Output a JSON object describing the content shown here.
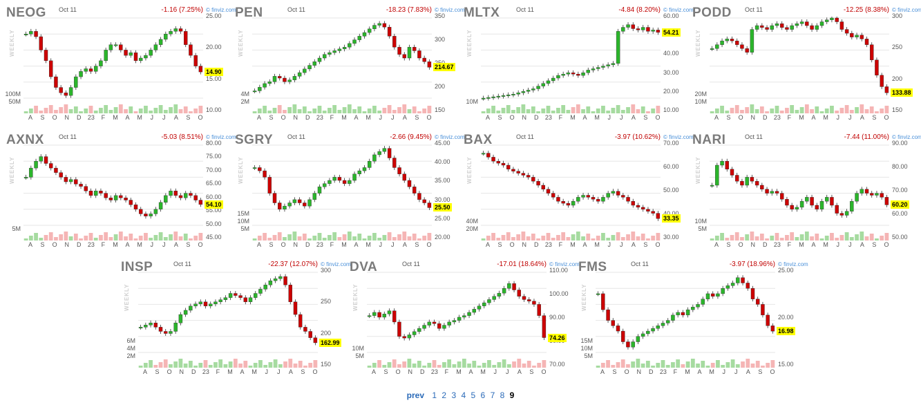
{
  "months": [
    "A",
    "S",
    "O",
    "N",
    "D",
    "23",
    "F",
    "M",
    "A",
    "M",
    "J",
    "J",
    "A",
    "S",
    "O"
  ],
  "watermark": "WEEKLY",
  "source": "© finviz.com",
  "colors": {
    "up": "#2bb52b",
    "down": "#cc0000",
    "vol_up": "#a6dba0",
    "vol_down": "#f5b5b5",
    "grid": "#e6e6e6",
    "price_bg": "#ffff00"
  },
  "charts": [
    {
      "ticker": "NEOG",
      "date": "Oct 11",
      "change": "-1.16 (7.25%)",
      "price": "14.90",
      "y_ticks": [
        "25.00",
        "20.00",
        "15.00",
        "10.00"
      ],
      "vol_ticks": [
        "100M",
        "50M"
      ],
      "ymin": 10,
      "ymax": 25,
      "closes": [
        22,
        22.5,
        21.5,
        19,
        17,
        14,
        12,
        11,
        10.5,
        12,
        14,
        15,
        15.5,
        15,
        16,
        17,
        19,
        20,
        20,
        19,
        18,
        18.5,
        17,
        17.5,
        18,
        19,
        20,
        21,
        22,
        22.5,
        23,
        22.5,
        20,
        18,
        16,
        14.9
      ]
    },
    {
      "ticker": "PEN",
      "date": "Oct 11",
      "change": "-18.23 (7.83%)",
      "price": "214.67",
      "y_ticks": [
        "350",
        "300",
        "250",
        "200",
        "150"
      ],
      "vol_ticks": [
        "4M",
        "2M"
      ],
      "ymin": 130,
      "ymax": 350,
      "closes": [
        150,
        160,
        170,
        175,
        190,
        185,
        175,
        180,
        190,
        200,
        210,
        220,
        230,
        240,
        250,
        255,
        260,
        265,
        270,
        280,
        290,
        300,
        310,
        320,
        330,
        335,
        325,
        300,
        270,
        250,
        240,
        270,
        260,
        240,
        230,
        214.67
      ]
    },
    {
      "ticker": "MLTX",
      "date": "Oct 11",
      "change": "-4.84 (8.20%)",
      "price": "54.21",
      "y_ticks": [
        "60.00",
        "50.00",
        "40.00",
        "30.00",
        "20.00",
        "10.00"
      ],
      "vol_ticks": [
        "10M"
      ],
      "ymin": 5,
      "ymax": 65,
      "closes": [
        5,
        5.5,
        6,
        6.5,
        7,
        7.5,
        8,
        9,
        10,
        11,
        12,
        14,
        16,
        18,
        20,
        22,
        23,
        24,
        23,
        22,
        24,
        26,
        27,
        28,
        29,
        30,
        31,
        55,
        58,
        60,
        57,
        56,
        58,
        55,
        56,
        54.21
      ]
    },
    {
      "ticker": "PODD",
      "date": "Oct 11",
      "change": "-12.25 (8.38%)",
      "price": "133.88",
      "y_ticks": [
        "300",
        "250",
        "200",
        "150"
      ],
      "vol_ticks": [
        "20M",
        "10M"
      ],
      "ymin": 120,
      "ymax": 330,
      "closes": [
        250,
        260,
        270,
        275,
        270,
        260,
        250,
        240,
        300,
        310,
        305,
        300,
        310,
        315,
        305,
        300,
        310,
        315,
        320,
        310,
        300,
        310,
        320,
        325,
        330,
        320,
        300,
        290,
        280,
        285,
        275,
        260,
        220,
        180,
        150,
        133.88
      ]
    },
    {
      "ticker": "AXNX",
      "date": "Oct 11",
      "change": "-5.03 (8.51%)",
      "price": "54.10",
      "y_ticks": [
        "80.00",
        "75.00",
        "70.00",
        "65.00",
        "60.00",
        "55.00",
        "50.00",
        "45.00"
      ],
      "vol_ticks": [
        "5M"
      ],
      "ymin": 45,
      "ymax": 80,
      "closes": [
        66,
        70,
        73,
        75,
        72,
        70,
        68,
        66,
        64,
        65,
        63,
        62,
        60,
        58,
        60,
        59,
        57,
        56,
        58,
        57,
        56,
        54,
        52,
        50,
        49,
        50,
        52,
        55,
        58,
        60,
        58,
        57,
        59,
        58,
        56,
        54.1
      ]
    },
    {
      "ticker": "SGRY",
      "date": "Oct 11",
      "change": "-2.66 (9.45%)",
      "price": "25.50",
      "y_ticks": [
        "45.00",
        "40.00",
        "35.00",
        "30.00",
        "25.00",
        "20.00"
      ],
      "vol_ticks": [
        "15M",
        "10M",
        "5M"
      ],
      "ymin": 20,
      "ymax": 45,
      "closes": [
        38,
        37,
        35,
        30,
        27,
        25,
        26,
        27,
        28,
        27,
        26,
        28,
        30,
        32,
        33,
        34,
        35,
        34,
        33,
        34,
        36,
        37,
        38,
        40,
        42,
        43,
        44,
        41,
        38,
        36,
        34,
        32,
        30,
        28,
        27,
        25.5
      ]
    },
    {
      "ticker": "BAX",
      "date": "Oct 11",
      "change": "-3.97 (10.62%)",
      "price": "33.35",
      "y_ticks": [
        "70.00",
        "60.00",
        "50.00",
        "40.00",
        "30.00"
      ],
      "vol_ticks": [
        "40M",
        "20M"
      ],
      "ymin": 30,
      "ymax": 70,
      "closes": [
        66,
        64,
        62,
        61,
        60,
        58,
        57,
        56,
        55,
        54,
        52,
        50,
        48,
        46,
        44,
        42,
        41,
        40,
        42,
        44,
        45,
        44,
        43,
        42,
        44,
        46,
        47,
        45,
        44,
        42,
        40,
        39,
        38,
        37,
        36,
        33.35
      ]
    },
    {
      "ticker": "NARI",
      "date": "Oct 11",
      "change": "-7.44 (11.00%)",
      "price": "60.20",
      "y_ticks": [
        "90.00",
        "80.00",
        "70.00",
        "60.00",
        "50.00"
      ],
      "vol_ticks": [
        "10M",
        "5M"
      ],
      "ymin": 50,
      "ymax": 90,
      "closes": [
        70,
        80,
        82,
        78,
        75,
        72,
        70,
        74,
        72,
        70,
        68,
        66,
        67,
        66,
        63,
        60,
        58,
        59,
        62,
        64,
        60,
        58,
        62,
        64,
        60,
        56,
        55,
        57,
        62,
        66,
        68,
        66,
        65,
        66,
        64,
        60.2
      ]
    },
    {
      "ticker": "INSP",
      "date": "Oct 11",
      "change": "-22.37 (12.07%)",
      "price": "162.99",
      "y_ticks": [
        "300",
        "250",
        "200",
        "150"
      ],
      "vol_ticks": [
        "6M",
        "4M",
        "2M"
      ],
      "ymin": 140,
      "ymax": 330,
      "closes": [
        200,
        205,
        210,
        200,
        190,
        185,
        190,
        210,
        230,
        240,
        250,
        255,
        260,
        250,
        255,
        260,
        265,
        270,
        280,
        275,
        270,
        260,
        270,
        280,
        290,
        300,
        310,
        315,
        320,
        300,
        260,
        230,
        200,
        190,
        175,
        162.99
      ]
    },
    {
      "ticker": "DVA",
      "date": "Oct 11",
      "change": "-17.01 (18.64%)",
      "price": "74.26",
      "y_ticks": [
        "110.00",
        "100.00",
        "90.00",
        "80.00",
        "70.00"
      ],
      "vol_ticks": [
        "10M",
        "5M"
      ],
      "ymin": 65,
      "ymax": 115,
      "closes": [
        88,
        90,
        87,
        89,
        91,
        84,
        75,
        74,
        76,
        78,
        80,
        82,
        84,
        83,
        80,
        82,
        84,
        85,
        87,
        88,
        90,
        92,
        94,
        96,
        98,
        100,
        102,
        105,
        108,
        104,
        100,
        98,
        97,
        95,
        88,
        74.26
      ]
    },
    {
      "ticker": "FMS",
      "date": "Oct 11",
      "change": "-3.97 (18.96%)",
      "price": "16.98",
      "y_ticks": [
        "25.00",
        "20.00",
        "15.00"
      ],
      "vol_ticks": [
        "15M",
        "10M",
        "5M"
      ],
      "ymin": 13,
      "ymax": 28,
      "closes": [
        24,
        21,
        19,
        18,
        17,
        15,
        14,
        15,
        16,
        16.5,
        17,
        17.5,
        18,
        18.5,
        19,
        20,
        20.5,
        20,
        21,
        21.5,
        22,
        23,
        24,
        23.5,
        24,
        25,
        25.5,
        26,
        27,
        26,
        25,
        23,
        22,
        20,
        18,
        16.98
      ]
    }
  ],
  "pager": {
    "prev": "prev",
    "pages": [
      "1",
      "2",
      "3",
      "4",
      "5",
      "6",
      "7",
      "8"
    ],
    "current": "9"
  }
}
